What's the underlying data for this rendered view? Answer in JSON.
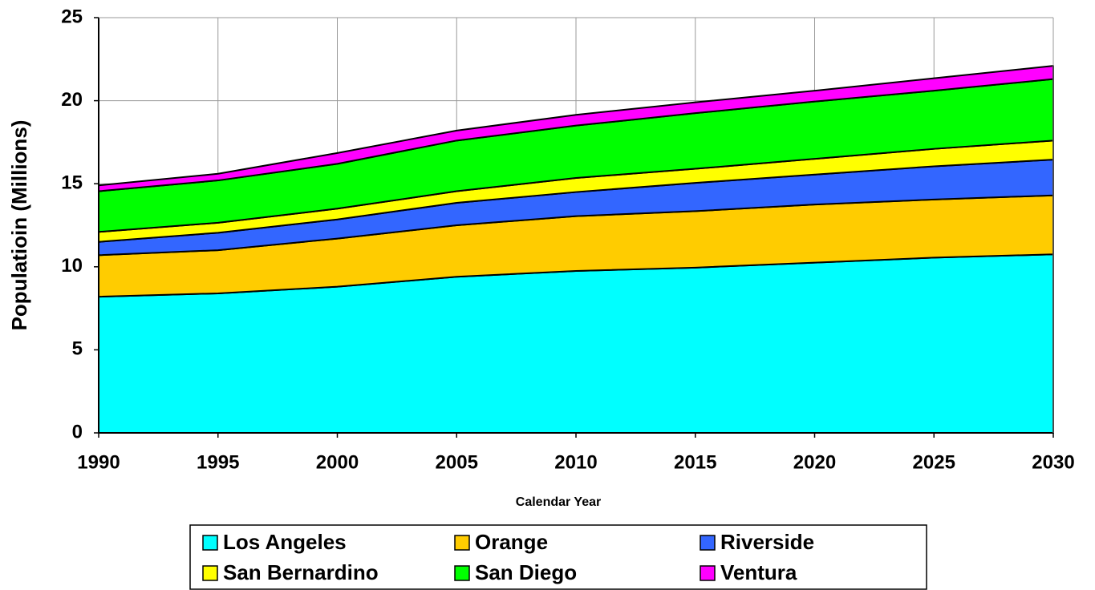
{
  "chart_data": {
    "type": "stacked_area",
    "x_label": "Calendar Year",
    "y_label": "Populatioin (Millions)",
    "x": [
      1990,
      1995,
      2000,
      2005,
      2010,
      2015,
      2020,
      2025,
      2030
    ],
    "series": [
      {
        "name": "Los Angeles",
        "color": "#00ffff",
        "values": [
          8.2,
          8.4,
          8.8,
          9.4,
          9.75,
          9.95,
          10.25,
          10.55,
          10.75
        ]
      },
      {
        "name": "Orange",
        "color": "#ffcc00",
        "values": [
          2.5,
          2.6,
          2.9,
          3.1,
          3.3,
          3.4,
          3.5,
          3.5,
          3.55
        ]
      },
      {
        "name": "Riverside",
        "color": "#3366ff",
        "values": [
          0.8,
          1.05,
          1.15,
          1.35,
          1.45,
          1.7,
          1.8,
          2.0,
          2.15
        ]
      },
      {
        "name": "San Bernardino",
        "color": "#ffff00",
        "values": [
          0.6,
          0.6,
          0.65,
          0.7,
          0.85,
          0.85,
          0.95,
          1.05,
          1.15
        ]
      },
      {
        "name": "San Diego",
        "color": "#00ff00",
        "values": [
          2.45,
          2.55,
          2.7,
          3.05,
          3.15,
          3.35,
          3.45,
          3.5,
          3.7
        ]
      },
      {
        "name": "Ventura",
        "color": "#ff00ff",
        "values": [
          0.35,
          0.4,
          0.65,
          0.6,
          0.65,
          0.65,
          0.65,
          0.75,
          0.8
        ]
      }
    ],
    "xlim": [
      1990,
      2030
    ],
    "xticks": [
      1990,
      1995,
      2000,
      2005,
      2010,
      2015,
      2020,
      2025,
      2030
    ],
    "ylim": [
      0,
      25
    ],
    "yticks": [
      0,
      5,
      10,
      15,
      20,
      25
    ],
    "grid": true,
    "legend": "bottom"
  }
}
